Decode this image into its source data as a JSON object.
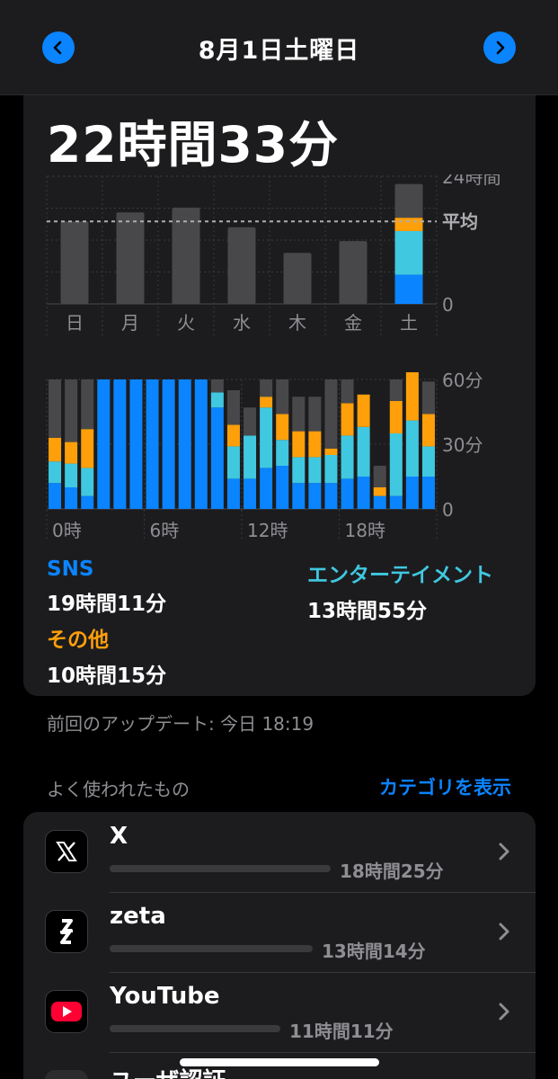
{
  "nav": {
    "title": "8月1日土曜日"
  },
  "summary": {
    "total": "22時間33分"
  },
  "colors": {
    "sns": "#0a84ff",
    "entertainment": "#40c8e0",
    "other": "#ff9f0a",
    "bar": "#48484a",
    "accent": "#0a84ff"
  },
  "chart_data": [
    {
      "type": "bar",
      "title": "",
      "categories": [
        "日",
        "月",
        "火",
        "水",
        "木",
        "金",
        "土"
      ],
      "ylabels": {
        "max": "24時間",
        "avg": "平均",
        "zero": "0"
      },
      "ylim": [
        0,
        24
      ],
      "average": 15.5,
      "values": [
        15.5,
        17.2,
        18.1,
        14.4,
        9.6,
        11.8,
        22.55
      ],
      "today_breakdown": {
        "sns": 5.5,
        "entertainment": 8.2,
        "other": 2.5
      }
    },
    {
      "type": "bar",
      "title": "",
      "xticks": [
        "0時",
        "6時",
        "12時",
        "18時"
      ],
      "ylabels": [
        "60分",
        "30分",
        "0"
      ],
      "ylim": [
        0,
        60
      ],
      "series": [
        {
          "name": "SNS",
          "values": [
            12,
            10,
            6,
            60,
            60,
            60,
            60,
            60,
            60,
            60,
            47,
            14,
            14,
            19,
            20,
            12,
            12,
            12,
            14,
            15,
            6,
            6,
            15,
            15
          ]
        },
        {
          "name": "エンターテイメント",
          "values": [
            10,
            11,
            13,
            0,
            0,
            0,
            0,
            0,
            0,
            0,
            7,
            15,
            20,
            28,
            12,
            12,
            12,
            13,
            20,
            23,
            0,
            29,
            26,
            14
          ]
        },
        {
          "name": "その他",
          "values": [
            11,
            10,
            18,
            0,
            0,
            0,
            0,
            0,
            0,
            0,
            0,
            10,
            0,
            5,
            12,
            12,
            12,
            3,
            15,
            15,
            4,
            15,
            27,
            15
          ]
        },
        {
          "name": "",
          "values": [
            27,
            29,
            23,
            0,
            0,
            0,
            0,
            0,
            0,
            0,
            6,
            16,
            13,
            8,
            16,
            16,
            16,
            32,
            11,
            0,
            10,
            10,
            0,
            15
          ]
        }
      ]
    }
  ],
  "legend": {
    "sns_label": "SNS",
    "sns_time": "19時間11分",
    "ent_label": "エンターテイメント",
    "ent_time": "13時間55分",
    "other_label": "その他",
    "other_time": "10時間15分"
  },
  "updated": "前回のアップデート: 今日 18:19",
  "most_used": {
    "title": "よく使われたもの",
    "show_categories": "カテゴリを表示"
  },
  "apps": [
    {
      "name": "X",
      "time": "18時間25分",
      "icon": "x-logo-icon",
      "fraction": 1.0
    },
    {
      "name": "zeta",
      "time": "13時間14分",
      "icon": "zeta-logo-icon",
      "fraction": 0.72
    },
    {
      "name": "YouTube",
      "time": "11時間11分",
      "icon": "youtube-logo-icon",
      "fraction": 0.61
    },
    {
      "name": "ユーザ認証",
      "time": "",
      "icon": "globe-icon",
      "fraction": 0
    }
  ]
}
